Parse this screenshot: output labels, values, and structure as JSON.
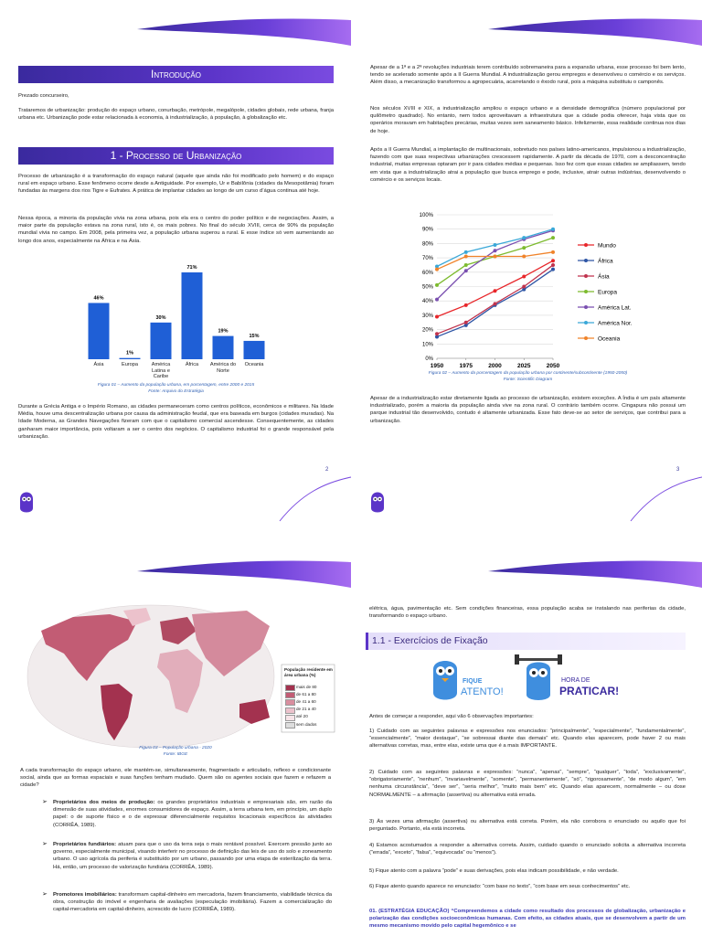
{
  "page1": {
    "header": "Introdução",
    "greeting": "Prezado concurseiro,",
    "intro": "Trataremos de urbanização: produção do espaço urbano, conurbação, metrópole, megalópole, cidades globais, rede urbana, franja urbana etc. Urbanização pode estar relacionada à economia, à industrialização, à população, à globalização etc.",
    "section_title": "1 - Processo de Urbanização",
    "paragraphs": [
      "Processo de urbanização é a transformação do espaço natural (aquele que ainda não foi modificado pelo homem) e do espaço rural em espaço urbano. Esse fenômeno ocorre desde a Antiguidade. Por exemplo, Ur e Babilônia (cidades da Mesopotâmia) foram fundadas às margens dos rios Tigre e Eufrates. A prática de implantar cidades ao longo de um curso d’água continua até hoje.",
      "Nessa época, a minoria da população vivia na zona urbana, pois ela era o centro do poder político e de negociações. Assim, a maior parte da população estava na zona rural, isto é, os mais pobres. No final do século XVIII, cerca de 90% da população mundial vivia no campo. Em 2008, pela primeira vez, a população urbana superou a rural. E esse índice só vem aumentando ao longo dos anos, especialmente na África e na Ásia."
    ],
    "figure_caption": "Figura 01 – Aumento da população urbana, em porcentagem, entre 2000 e 2015",
    "figure_source": "Fonte: Arquivo do Estratégia",
    "closing": "Durante a Grécia Antiga e o Império Romano, as cidades permaneceram como centros políticos, econômicos e militares. Na Idade Média, houve uma descentralização urbana por causa da administração feudal, que era baseada em burgos (cidades muradas). Na Idade Moderna, as Grandes Navegações fizeram com que o capitalismo comercial ascendesse. Consequentemente, as cidades ganharam maior importância, pois voltaram a ser o centro dos negócios. O capitalismo industrial foi o grande responsável pela urbanização.",
    "page_number": 2
  },
  "page2": {
    "paragraphs": [
      "Apesar de a 1ª e a 2ª revoluções industriais terem contribuído sobremaneira para a expansão urbana, esse processo foi bem lento, tendo se acelerado somente após a II Guerra Mundial. A industrialização gerou empregos e desenvolveu o comércio e os serviços. Além disso, a mecanização transformou a agropecuária, acarretando o êxodo rural, pois a máquina substituiu o camponês.",
      "Nos séculos XVIII e XIX, a industrialização ampliou o espaço urbano e a densidade demográfica (número populacional por quilômetro quadrado). No entanto, nem todos aproveitavam a infraestrutura que a cidade podia oferecer, haja vista que os operários moravam em habitações precárias, muitas vezes sem saneamento básico. Infelizmente, essa realidade continua nos dias de hoje.",
      "Após a II Guerra Mundial, a implantação de multinacionais, sobretudo nos países latino-americanos, impulsionou a industrialização, fazendo com que suas respectivas urbanizações crescessem rapidamente. A partir da década de 1970, com a desconcentração industrial, muitas empresas optaram por ir para cidades médias e pequenas. Isso fez com que essas cidades se ampliassem, tendo em vista que a industrialização atrai a população que busca emprego e pode, inclusive, atrair outras indústrias, desenvolvendo o comércio e os serviços locais."
    ],
    "figure_caption": "Figura 02 – Aumento da porcentagem da população urbana por continente/subcontinente (1950-2050)",
    "figure_source": "Fonte: Scientific Diagram",
    "closing": "Apesar de a industrialização estar diretamente ligada ao processo de urbanização, existem exceções. A Índia é um país altamente industrializado, porém a maioria da população ainda vive na zona rural. O contrário também ocorre. Cingapura não possui um parque industrial tão desenvolvido, contudo é altamente urbanizada. Esse fato deve-se ao setor de serviços, que contribui para a urbanização.",
    "page_number": 3
  },
  "page3": {
    "map_legend": {
      "title": "População residente em área urbana (%)",
      "items": [
        {
          "label": "mais de 80",
          "color": "#a3324f"
        },
        {
          "label": "de 61 a 80",
          "color": "#c25c74"
        },
        {
          "label": "de 41 a 60",
          "color": "#d98e9f"
        },
        {
          "label": "de 21 a 40",
          "color": "#ecc2cc"
        },
        {
          "label": "até 20",
          "color": "#f7e4e8"
        },
        {
          "label": "sem dados",
          "color": "#dddddd"
        }
      ]
    },
    "figure_caption": "Figura 03 – População urbana - 2020",
    "figure_source": "Fonte: IBGE",
    "paragraph": "A cada transformação do espaço urbano, ele mantém-se, simultaneamente, fragmentado e articulado, reflexo e condicionante social, ainda que as formas espaciais e suas funções tenham mudado. Quem são os agentes sociais que fazem e refazem a cidade?",
    "bullets": [
      {
        "term": "Proprietários dos meios de produção:",
        "text": "os grandes proprietários industriais e empresariais são, em razão da dimensão de suas atividades, enormes consumidores de espaço. Assim, a terra urbana tem, em princípio, um duplo papel: o de suporte físico e o de expressar diferencialmente requisitos locacionais específicos às atividades (CORRÊA, 1989)."
      },
      {
        "term": "Proprietários fundiários:",
        "text": "atuam para que o uso da terra seja o mais rentável possível. Exercem pressão junto ao governo, especialmente municipal, visando interferir no processo de definição das leis de uso do solo e zoneamento urbano. O uso agrícola da periferia é substituído por um urbano, passando por uma etapa de esterilização da terra. Há, então, um processo de valorização fundiária (CORRÊA, 1989)."
      },
      {
        "term": "Promotores imobiliários:",
        "text": "transformam capital-dinheiro em mercadoria, fazem financiamento, viabilidade técnica da obra, construção do imóvel e engenharia de avaliações (especulação imobiliária). Fazem a comercialização do capital-mercadoria em capital-dinheiro, acrescido de lucro (CORRÊA, 1989)."
      }
    ]
  },
  "page4": {
    "paragraph": "elétrica, água, pavimentação etc. Sem condições financeiras, essa população acaba se instalando nas periferias da cidade, transformando o espaço urbano.",
    "section_title": "1.1 - Exercícios de Fixação",
    "badge_attention": [
      "FIQUE",
      "ATENTO!"
    ],
    "badge_practice": [
      "HORA DE",
      "PRATICAR!"
    ],
    "lead": "Antes de começar a responder, aqui vão 6 observações importantes:",
    "tips": [
      "1) Cuidado com as seguintes palavras e expressões nos enunciados: “principalmente”, “especialmente”, “fundamentalmente”, “essencialmente”, “maior destaque”, “se sobressai diante das demais” etc. Quando elas aparecem, pode haver 2 ou mais alternativas corretas, mas, entre elas, existe uma que é a mais IMPORTANTE.",
      "2) Cuidado com as seguintes palavras e expressões: “nunca”, “apenas”, “sempre”, “qualquer”, “toda”, “exclusivamente”, “obrigatoriamente”, “nenhum”, “invariavelmente”, “somente”, “permanentemente”, “só”, “rigorosamente”, “de modo algum”, “em nenhuma circunstância”, “deve ser”, “seria melhor”, “muito mais bem” etc. Quando elas aparecem, normalmente – ou dose NORMALMENTE – a afirmação (assertiva) ou alternativa está errada.",
      "3) Às vezes uma afirmação (assertiva) ou alternativa está correta. Porém, ela não corrobora o enunciado ou aquilo que foi perguntado. Portanto, ela está incorreta.",
      "4) Estamos acostumados a responder a alternativa correta. Assim, cuidado quando o enunciado solicita a alternativa incorreta (“errada”, “exceto”, “falsa”, “equivocada” ou “menos”).",
      "5) Fique atento com a palavra “pode” e suas derivações, pois elas indicam possibilidade, e não verdade.",
      "6) Fique atento quando aparece no enunciado: “com base no texto”, “com base em seus conhecimentos” etc."
    ],
    "question": "01. (ESTRATÉGIA EDUCAÇÃO) “Compreendemos a cidade como resultado dos processos de globalização, urbanização e polarização das condições socioeconômicas humanas. Com efeito, as cidades atuais, que se desenvolvem a partir de um mesmo mecanismo movido pelo capital hegemônico e se"
  },
  "chart_data": [
    {
      "type": "bar",
      "categories": [
        "Ásia",
        "Europa",
        "América Latina e Caribe",
        "África",
        "América do Norte",
        "Oceania"
      ],
      "values": [
        46,
        1,
        30,
        71,
        19,
        15
      ],
      "value_labels": [
        "46%",
        "1%",
        "30%",
        "71%",
        "19%",
        "15%"
      ],
      "color": "#1f5fd6"
    },
    {
      "type": "line",
      "x": [
        1950,
        1975,
        2000,
        2025,
        2050
      ],
      "xlim": [
        1950,
        2050
      ],
      "xticks": [
        1950,
        1975,
        2000,
        2025,
        2050
      ],
      "ylim": [
        0,
        100
      ],
      "yticks": [
        {
          "value": 0,
          "label": "0%"
        },
        {
          "value": 10,
          "label": "10%"
        },
        {
          "value": 20,
          "label": "20%"
        },
        {
          "value": 30,
          "label": "30%"
        },
        {
          "value": 40,
          "label": "40%"
        },
        {
          "value": 50,
          "label": "50%"
        },
        {
          "value": 60,
          "label": "60%"
        },
        {
          "value": 70,
          "label": "70%"
        },
        {
          "value": 80,
          "label": "80%"
        },
        {
          "value": 90,
          "label": "90%"
        },
        {
          "value": 100,
          "label": "100%"
        }
      ],
      "grid": true,
      "legend": "right",
      "series": [
        {
          "name": "Mundo",
          "color": "#e8262a",
          "values": [
            29,
            37,
            47,
            57,
            68
          ]
        },
        {
          "name": "África",
          "color": "#2e55a5",
          "values": [
            15,
            23,
            37,
            48,
            62
          ]
        },
        {
          "name": "Ásia",
          "color": "#c0334d",
          "values": [
            17,
            25,
            38,
            50,
            65
          ]
        },
        {
          "name": "Europa",
          "color": "#7dbb2f",
          "values": [
            51,
            65,
            71,
            77,
            84
          ]
        },
        {
          "name": "América Lat.",
          "color": "#7a4fb0",
          "values": [
            41,
            61,
            75,
            83,
            89
          ]
        },
        {
          "name": "América Nor.",
          "color": "#3aa8d8",
          "values": [
            64,
            74,
            79,
            84,
            90
          ]
        },
        {
          "name": "Oceania",
          "color": "#f0832a",
          "values": [
            62,
            71,
            71,
            71,
            74
          ]
        }
      ]
    }
  ]
}
